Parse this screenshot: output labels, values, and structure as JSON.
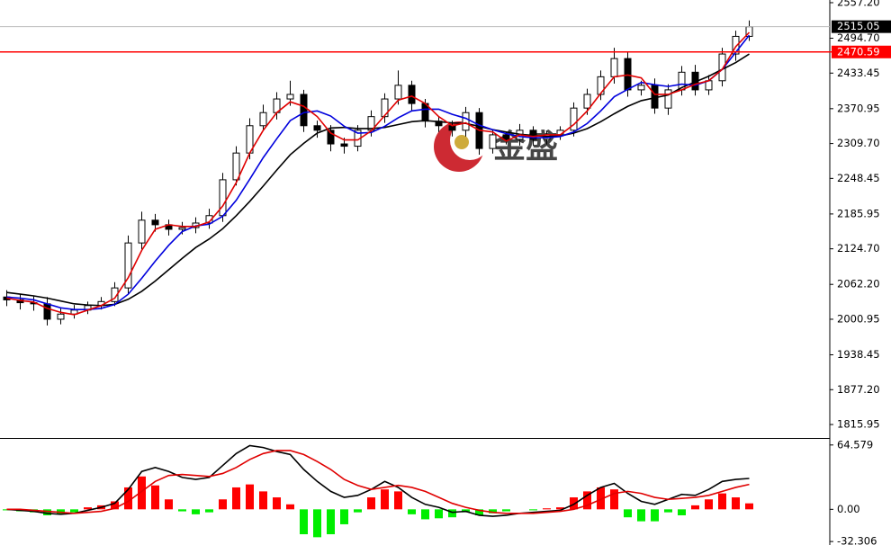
{
  "chart_data": [
    {
      "type": "candlestick",
      "open": [
        2040,
        2035,
        2030,
        2028,
        2001,
        2010,
        2017,
        2025,
        2032,
        2056,
        2135,
        2175,
        2167,
        2159,
        2162,
        2170,
        2183,
        2246,
        2293,
        2341,
        2364,
        2388,
        2396,
        2341,
        2333,
        2309,
        2305,
        2333,
        2357,
        2388,
        2412,
        2380,
        2349,
        2341,
        2333,
        2364,
        2301,
        2325,
        2317,
        2333,
        2317,
        2325,
        2333,
        2372,
        2396,
        2427,
        2459,
        2404,
        2412,
        2372,
        2404,
        2435,
        2404,
        2420,
        2467,
        2498
      ],
      "high": [
        2052,
        2046,
        2042,
        2040,
        2020,
        2026,
        2032,
        2040,
        2066,
        2148,
        2190,
        2186,
        2176,
        2172,
        2180,
        2195,
        2258,
        2305,
        2354,
        2378,
        2400,
        2420,
        2404,
        2350,
        2342,
        2320,
        2342,
        2368,
        2398,
        2438,
        2420,
        2388,
        2358,
        2350,
        2374,
        2372,
        2334,
        2330,
        2344,
        2340,
        2332,
        2340,
        2382,
        2406,
        2438,
        2478,
        2470,
        2420,
        2424,
        2414,
        2446,
        2448,
        2430,
        2478,
        2508,
        2526
      ],
      "low": [
        2024,
        2018,
        2016,
        1990,
        1992,
        2002,
        2010,
        2018,
        2024,
        2046,
        2124,
        2155,
        2148,
        2150,
        2152,
        2160,
        2172,
        2236,
        2282,
        2332,
        2352,
        2376,
        2330,
        2320,
        2296,
        2292,
        2296,
        2322,
        2346,
        2378,
        2368,
        2338,
        2330,
        2322,
        2322,
        2290,
        2292,
        2308,
        2306,
        2306,
        2308,
        2316,
        2322,
        2360,
        2386,
        2415,
        2392,
        2394,
        2362,
        2360,
        2394,
        2394,
        2395,
        2410,
        2455,
        2490
      ],
      "close": [
        2035,
        2030,
        2028,
        2001,
        2010,
        2017,
        2025,
        2032,
        2056,
        2135,
        2175,
        2167,
        2159,
        2162,
        2170,
        2183,
        2246,
        2293,
        2341,
        2364,
        2388,
        2396,
        2341,
        2333,
        2309,
        2305,
        2333,
        2357,
        2388,
        2412,
        2380,
        2349,
        2341,
        2333,
        2364,
        2301,
        2325,
        2317,
        2333,
        2317,
        2325,
        2333,
        2372,
        2396,
        2427,
        2459,
        2404,
        2412,
        2372,
        2404,
        2435,
        2404,
        2420,
        2467,
        2498,
        2515
      ],
      "series": [
        {
          "color": "#000000",
          "values": [
            2048,
            2045,
            2042,
            2038,
            2033,
            2028,
            2026,
            2025,
            2027,
            2036,
            2050,
            2068,
            2088,
            2108,
            2127,
            2142,
            2160,
            2183,
            2208,
            2235,
            2263,
            2290,
            2310,
            2328,
            2337,
            2338,
            2336,
            2336,
            2338,
            2343,
            2348,
            2350,
            2348,
            2346,
            2345,
            2340,
            2334,
            2330,
            2326,
            2324,
            2322,
            2323,
            2328,
            2336,
            2348,
            2362,
            2375,
            2385,
            2390,
            2395,
            2408,
            2418,
            2428,
            2440,
            2452,
            2467
          ]
        },
        {
          "color": "#0000dd",
          "values": [
            2040,
            2038,
            2035,
            2028,
            2021,
            2018,
            2018,
            2020,
            2027,
            2045,
            2073,
            2103,
            2131,
            2155,
            2165,
            2168,
            2182,
            2210,
            2247,
            2285,
            2318,
            2350,
            2364,
            2367,
            2358,
            2340,
            2328,
            2329,
            2340,
            2355,
            2367,
            2370,
            2370,
            2361,
            2354,
            2342,
            2334,
            2327,
            2322,
            2320,
            2320,
            2322,
            2330,
            2345,
            2367,
            2392,
            2405,
            2417,
            2413,
            2410,
            2414,
            2412,
            2420,
            2440,
            2470,
            2500
          ]
        },
        {
          "color": "#e00000",
          "values": [
            2038,
            2034,
            2031,
            2020,
            2013,
            2009,
            2017,
            2025,
            2038,
            2074,
            2122,
            2159,
            2167,
            2164,
            2164,
            2172,
            2200,
            2241,
            2293,
            2333,
            2364,
            2383,
            2375,
            2357,
            2328,
            2316,
            2316,
            2332,
            2359,
            2386,
            2393,
            2380,
            2357,
            2341,
            2346,
            2333,
            2330,
            2314,
            2325,
            2322,
            2325,
            2325,
            2343,
            2367,
            2398,
            2427,
            2430,
            2425,
            2396,
            2396,
            2404,
            2414,
            2420,
            2440,
            2480,
            2505
          ]
        }
      ],
      "ylim": [
        1792.3,
        2561.9
      ],
      "yticks": [
        {
          "value": 2557.2,
          "label": "2557.20"
        },
        {
          "value": 2494.7,
          "label": "2494.70"
        },
        2433.45,
        2370.95,
        {
          "value": 2309.7,
          "label": "2309.70"
        },
        2248.45,
        2185.95,
        {
          "value": 2124.7,
          "label": "2124.70"
        },
        {
          "value": 2062.2,
          "label": "2062.20"
        },
        2000.95,
        1938.45,
        {
          "value": 1877.2,
          "label": "1877.20"
        },
        1815.95
      ],
      "level": 2470.59,
      "level_color": "#ff0000",
      "last_price": 2515.05,
      "watermark": "金盛"
    },
    {
      "type": "macd",
      "histogram": [
        -1,
        -2,
        -3,
        -6,
        -5,
        -3,
        2,
        4,
        8,
        22,
        33,
        24,
        10,
        -2,
        -5,
        -3,
        10,
        22,
        25,
        18,
        12,
        5,
        -25,
        -28,
        -25,
        -15,
        -3,
        12,
        20,
        18,
        -5,
        -10,
        -9,
        -8,
        -3,
        -6,
        -4,
        -2,
        0,
        -1,
        1,
        2,
        12,
        18,
        22,
        20,
        -8,
        -12,
        -12,
        -3,
        -6,
        4,
        10,
        16,
        12,
        6
      ],
      "positive_color": "#ff0000",
      "negative_color": "#00ee00",
      "series": [
        {
          "color": "#000000",
          "values": [
            0,
            -1,
            -2,
            -4,
            -5,
            -4,
            -1,
            2,
            6,
            20,
            38,
            42,
            38,
            32,
            30,
            32,
            44,
            56,
            64,
            62,
            58,
            55,
            40,
            28,
            18,
            12,
            14,
            20,
            28,
            22,
            12,
            5,
            2,
            -3,
            -2,
            -6,
            -7,
            -6,
            -4,
            -3,
            -2,
            -1,
            5,
            14,
            22,
            26,
            16,
            8,
            5,
            10,
            15,
            14,
            20,
            28,
            30,
            31
          ]
        },
        {
          "color": "#e00000",
          "values": [
            0,
            0,
            -1,
            -2,
            -3,
            -4,
            -3,
            -2,
            1,
            8,
            18,
            28,
            34,
            35,
            34,
            33,
            36,
            42,
            50,
            56,
            59,
            59,
            55,
            48,
            40,
            30,
            24,
            20,
            22,
            24,
            22,
            18,
            12,
            6,
            2,
            -1,
            -3,
            -4,
            -4,
            -4,
            -3,
            -2,
            0,
            4,
            10,
            16,
            18,
            16,
            12,
            10,
            11,
            12,
            14,
            18,
            22,
            25
          ]
        }
      ],
      "ylim": [
        -35.8,
        69.8
      ],
      "yticks": [
        64.579,
        {
          "value": 0,
          "label": "0.00"
        },
        -32.306
      ]
    }
  ]
}
